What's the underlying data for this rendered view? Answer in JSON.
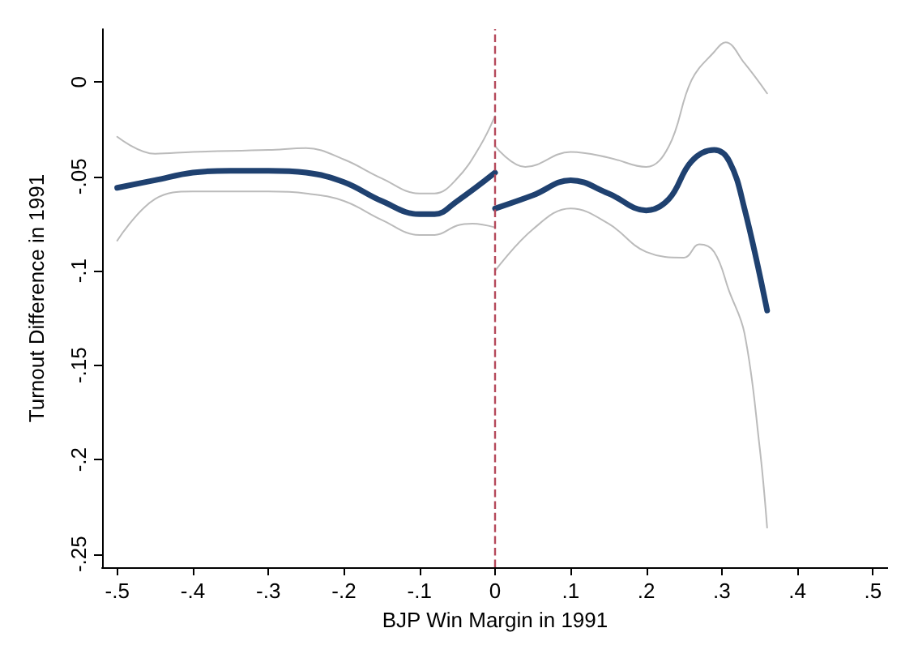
{
  "chart_data": {
    "type": "line",
    "xlabel": "BJP Win Margin in 1991",
    "ylabel": "Turnout Difference in 1991",
    "xlim": [
      -0.52,
      0.52
    ],
    "ylim": [
      -0.257,
      0.028
    ],
    "xticks": [
      {
        "value": -0.5,
        "label": "-.5"
      },
      {
        "value": -0.4,
        "label": "-.4"
      },
      {
        "value": -0.3,
        "label": "-.3"
      },
      {
        "value": -0.2,
        "label": "-.2"
      },
      {
        "value": -0.1,
        "label": "-.1"
      },
      0,
      {
        "value": 0.1,
        "label": ".1"
      },
      {
        "value": 0.2,
        "label": ".2"
      },
      {
        "value": 0.3,
        "label": ".3"
      },
      {
        "value": 0.4,
        "label": ".4"
      },
      {
        "value": 0.5,
        "label": ".5"
      }
    ],
    "yticks": [
      0,
      {
        "value": -0.05,
        "label": "-.05"
      },
      {
        "value": -0.1,
        "label": "-.1"
      },
      {
        "value": -0.15,
        "label": "-.15"
      },
      {
        "value": -0.2,
        "label": "-.2"
      },
      {
        "value": -0.25,
        "label": "-.25"
      }
    ],
    "grid": false,
    "marker": "none",
    "ref_lines": [
      {
        "axis": "x",
        "value": 0,
        "color": "#b5495b",
        "line_style": "dashed"
      }
    ],
    "series": [
      {
        "color": "#bbbbbb",
        "x": [
          -0.5,
          -0.45,
          -0.4,
          -0.3,
          -0.25,
          -0.2,
          -0.15,
          -0.1,
          -0.08,
          -0.05,
          -0.02,
          0
        ],
        "values": [
          -0.029,
          -0.038,
          -0.037,
          -0.036,
          -0.035,
          -0.041,
          -0.051,
          -0.059,
          -0.059,
          -0.051,
          -0.034,
          -0.018
        ]
      },
      {
        "color": "#bbbbbb",
        "x": [
          -0.5,
          -0.45,
          -0.4,
          -0.3,
          -0.25,
          -0.2,
          -0.15,
          -0.1,
          -0.08,
          -0.05,
          -0.03,
          0
        ],
        "values": [
          -0.084,
          -0.062,
          -0.058,
          -0.058,
          -0.059,
          -0.063,
          -0.073,
          -0.081,
          -0.081,
          -0.076,
          -0.075,
          -0.077
        ]
      },
      {
        "color": "#1f4170",
        "x": [
          -0.5,
          -0.45,
          -0.4,
          -0.35,
          -0.3,
          -0.25,
          -0.2,
          -0.15,
          -0.1,
          -0.08,
          -0.05,
          0
        ],
        "values": [
          -0.056,
          -0.052,
          -0.048,
          -0.047,
          -0.047,
          -0.048,
          -0.053,
          -0.063,
          -0.07,
          -0.07,
          -0.063,
          -0.048
        ]
      },
      {
        "color": "#bbbbbb",
        "x": [
          0,
          0.04,
          0.1,
          0.15,
          0.2,
          0.23,
          0.26,
          0.29,
          0.305,
          0.33,
          0.36
        ],
        "values": [
          -0.034,
          -0.045,
          -0.037,
          -0.04,
          -0.045,
          -0.034,
          0.001,
          0.016,
          0.021,
          0.01,
          -0.006
        ]
      },
      {
        "color": "#bbbbbb",
        "x": [
          0,
          0.05,
          0.1,
          0.15,
          0.2,
          0.25,
          0.27,
          0.29,
          0.31,
          0.33,
          0.35,
          0.36
        ],
        "values": [
          -0.1,
          -0.078,
          -0.067,
          -0.075,
          -0.09,
          -0.093,
          -0.086,
          -0.09,
          -0.111,
          -0.133,
          -0.193,
          -0.236
        ]
      },
      {
        "color": "#1f4170",
        "x": [
          0,
          0.05,
          0.1,
          0.15,
          0.2,
          0.23,
          0.26,
          0.29,
          0.31,
          0.33,
          0.36
        ],
        "values": [
          -0.067,
          -0.06,
          -0.052,
          -0.059,
          -0.068,
          -0.062,
          -0.042,
          -0.036,
          -0.042,
          -0.067,
          -0.121
        ]
      }
    ]
  }
}
